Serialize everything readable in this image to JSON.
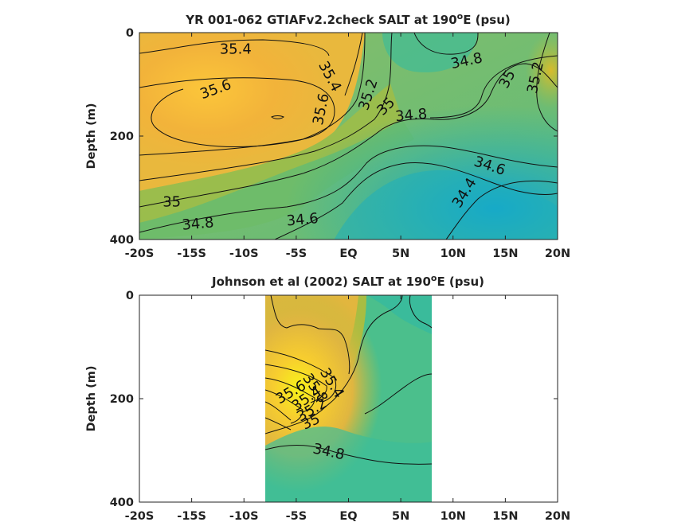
{
  "chart_data": [
    {
      "type": "heatmap",
      "title": "YR 001-062 GTIAFv2.2check SALT at 190",
      "title_sup": "o",
      "title_tail": "E (psu)",
      "ylabel": "Depth (m)",
      "xlim": [
        -20,
        20
      ],
      "ylim": [
        0,
        400
      ],
      "y_reversed": true,
      "x_ticks": [
        -20,
        -15,
        -10,
        -5,
        0,
        5,
        10,
        15,
        20
      ],
      "x_tick_labels": [
        "-20S",
        "-15S",
        "-10S",
        "-5S",
        "EQ",
        "5N",
        "10N",
        "15N",
        "20N"
      ],
      "y_ticks": [
        0,
        200,
        400
      ],
      "y_tick_labels": [
        "0",
        "200",
        "400"
      ],
      "data_extent_x": [
        -20,
        20
      ],
      "contour_labels": [
        {
          "text": "35.4",
          "x": -10.8,
          "y": 32,
          "rot": 0
        },
        {
          "text": "35.6",
          "x": -12.7,
          "y": 110,
          "rot": -20
        },
        {
          "text": "35.4",
          "x": -1.8,
          "y": 85,
          "rot": 62
        },
        {
          "text": "35.6",
          "x": -2.6,
          "y": 148,
          "rot": -78
        },
        {
          "text": "35.2",
          "x": 1.9,
          "y": 120,
          "rot": -72
        },
        {
          "text": "35",
          "x": 3.6,
          "y": 143,
          "rot": -45
        },
        {
          "text": "34.8",
          "x": 6,
          "y": 160,
          "rot": -5
        },
        {
          "text": "34.8",
          "x": 11.3,
          "y": 55,
          "rot": -12
        },
        {
          "text": "35",
          "x": 15.2,
          "y": 90,
          "rot": -62
        },
        {
          "text": "35.2",
          "x": 17.9,
          "y": 87,
          "rot": -78
        },
        {
          "text": "34.6",
          "x": 13.5,
          "y": 258,
          "rot": 18
        },
        {
          "text": "34.4",
          "x": 11.1,
          "y": 310,
          "rot": -58
        },
        {
          "text": "35",
          "x": -16.9,
          "y": 328,
          "rot": 0
        },
        {
          "text": "34.8",
          "x": -14.4,
          "y": 370,
          "rot": -5
        },
        {
          "text": "34.6",
          "x": -4.4,
          "y": 362,
          "rot": -5
        }
      ]
    },
    {
      "type": "heatmap",
      "title": "Johnson et al (2002) SALT at 190",
      "title_sup": "o",
      "title_tail": "E (psu)",
      "ylabel": "Depth (m)",
      "xlim": [
        -20,
        20
      ],
      "ylim": [
        0,
        400
      ],
      "y_reversed": true,
      "x_ticks": [
        -20,
        -15,
        -10,
        -5,
        0,
        5,
        10,
        15,
        20
      ],
      "x_tick_labels": [
        "-20S",
        "-15S",
        "-10S",
        "-5S",
        "EQ",
        "5N",
        "10N",
        "15N",
        "20N"
      ],
      "y_ticks": [
        0,
        200,
        400
      ],
      "y_tick_labels": [
        "0",
        "200",
        "400"
      ],
      "data_extent_x": [
        -8,
        8
      ],
      "contour_labels": [
        {
          "text": "35.4",
          "x": -1.6,
          "y": 170,
          "rot": 58
        },
        {
          "text": "35.8",
          "x": -3.2,
          "y": 180,
          "rot": 55
        },
        {
          "text": "35.6",
          "x": -5.5,
          "y": 188,
          "rot": -30
        },
        {
          "text": "35.4",
          "x": -4,
          "y": 200,
          "rot": -35
        },
        {
          "text": "35.2",
          "x": -3.5,
          "y": 222,
          "rot": -30
        },
        {
          "text": "35",
          "x": -3.6,
          "y": 245,
          "rot": -25
        },
        {
          "text": "34.8",
          "x": -1.9,
          "y": 303,
          "rot": 12
        }
      ]
    }
  ]
}
